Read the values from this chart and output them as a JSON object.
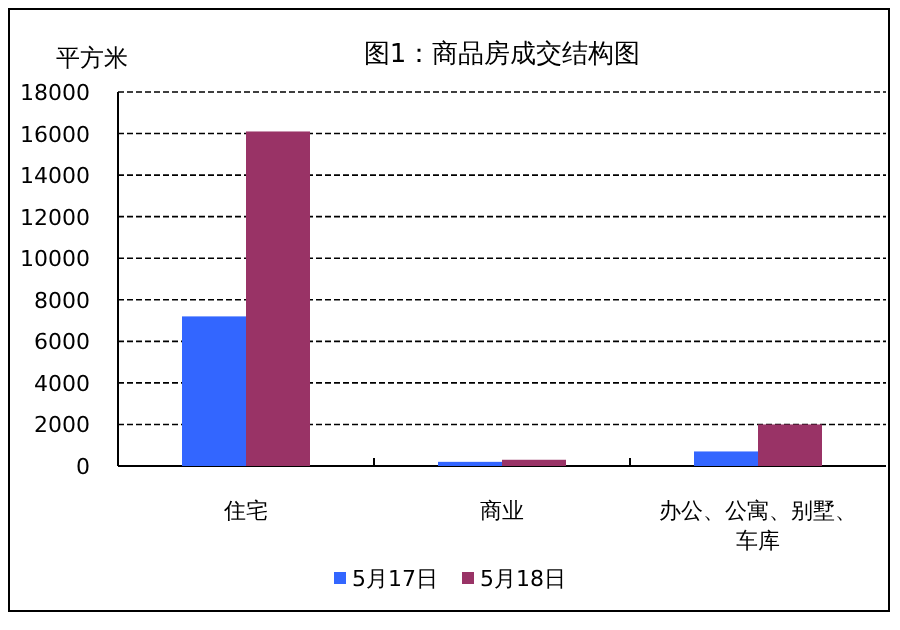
{
  "chart_data": {
    "type": "bar",
    "title": "图1：商品房成交结构图",
    "ylabel": "平方米",
    "categories": [
      "住宅",
      "商业",
      "办公、公寓、别墅、车库"
    ],
    "series": [
      {
        "name": "5月17日",
        "color": "#3366ff",
        "values": [
          7200,
          200,
          700
        ]
      },
      {
        "name": "5月18日",
        "color": "#993366",
        "values": [
          16100,
          300,
          2000
        ]
      }
    ],
    "ylim": [
      0,
      18000
    ],
    "yticks": [
      0,
      2000,
      4000,
      6000,
      8000,
      10000,
      12000,
      14000,
      16000,
      18000
    ],
    "grid": "y",
    "legend": "bottom"
  }
}
